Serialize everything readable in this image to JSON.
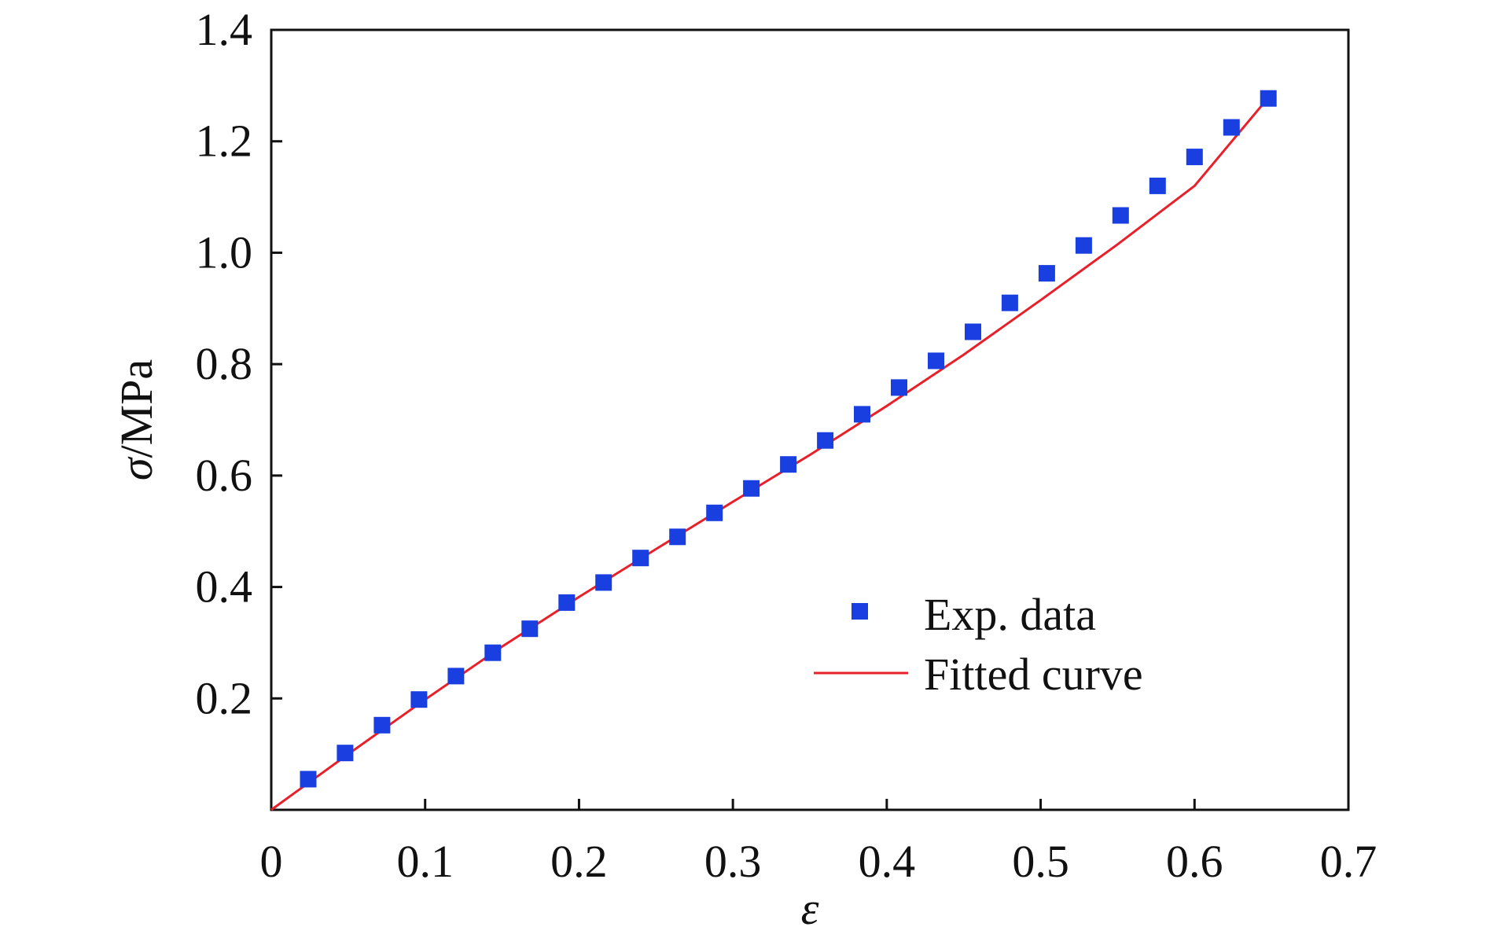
{
  "chart_data": {
    "type": "scatter",
    "title": "",
    "xlabel": "ε",
    "ylabel_symbol": "σ",
    "ylabel_unit": "/MPa",
    "xlim": [
      0,
      0.7
    ],
    "ylim": [
      0,
      1.4
    ],
    "x_ticks": [
      0,
      0.1,
      0.2,
      0.3,
      0.4,
      0.5,
      0.6,
      0.7
    ],
    "x_tick_labels": [
      "0",
      "0.1",
      "0.2",
      "0.3",
      "0.4",
      "0.5",
      "0.6",
      "0.7"
    ],
    "y_ticks": [
      0.2,
      0.4,
      0.6,
      0.8,
      1.0,
      1.2,
      1.4
    ],
    "y_tick_labels": [
      "0.2",
      "0.4",
      "0.6",
      "0.8",
      "1.0",
      "1.2",
      "1.4"
    ],
    "grid": false,
    "legend_position": "lower-right",
    "series": [
      {
        "name": "Exp. data",
        "kind": "scatter",
        "marker": "square",
        "color": "#1a3fe0",
        "x": [
          0.024,
          0.048,
          0.072,
          0.096,
          0.12,
          0.144,
          0.168,
          0.192,
          0.216,
          0.24,
          0.264,
          0.288,
          0.312,
          0.336,
          0.36,
          0.384,
          0.408,
          0.432,
          0.456,
          0.48,
          0.504,
          0.528,
          0.552,
          0.576,
          0.6,
          0.624,
          0.648
        ],
        "y": [
          0.055,
          0.102,
          0.152,
          0.198,
          0.24,
          0.282,
          0.325,
          0.372,
          0.408,
          0.452,
          0.49,
          0.533,
          0.577,
          0.62,
          0.663,
          0.71,
          0.758,
          0.806,
          0.858,
          0.91,
          0.963,
          1.013,
          1.067,
          1.12,
          1.172,
          1.225,
          1.277
        ]
      },
      {
        "name": "Fitted curve",
        "kind": "line",
        "color": "#e8202a",
        "x": [
          0,
          0.05,
          0.1,
          0.15,
          0.2,
          0.25,
          0.3,
          0.35,
          0.4,
          0.45,
          0.5,
          0.55,
          0.6,
          0.65
        ],
        "y": [
          0,
          0.1,
          0.198,
          0.293,
          0.382,
          0.468,
          0.553,
          0.637,
          0.725,
          0.817,
          0.915,
          1.015,
          1.12,
          1.285
        ]
      }
    ]
  }
}
